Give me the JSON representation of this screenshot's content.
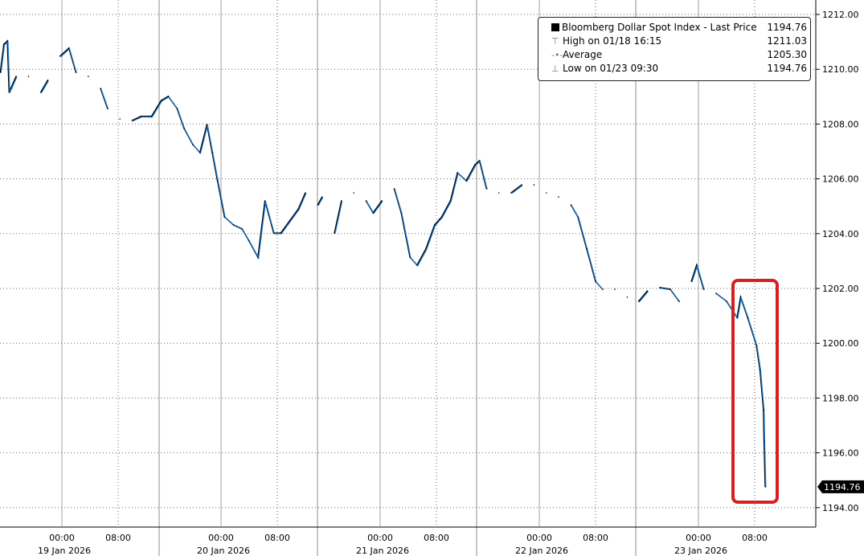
{
  "chart_data": {
    "type": "line",
    "title": "",
    "ylim": [
      1193.6,
      1212.4
    ],
    "y_ticks": [
      "1194.00",
      "1196.00",
      "1198.00",
      "1200.00",
      "1202.00",
      "1204.00",
      "1206.00",
      "1208.00",
      "1210.00",
      "1212.00"
    ],
    "x_tick_times": [
      "00:00",
      "08:00"
    ],
    "x_days": [
      "19 Jan 2026",
      "20 Jan 2026",
      "21 Jan 2026",
      "22 Jan 2026",
      "23 Jan 2026"
    ],
    "grid": true,
    "legend_position": "top-right",
    "last_price_label": "1194.76",
    "highlight_box_color": "#d61f1f",
    "line_colors": [
      "#000000",
      "#1f7fd6"
    ],
    "legend": {
      "series": "Bloomberg Dollar Spot Index - Last Price",
      "series_value": "1194.76",
      "high": "High on 01/18 16:15",
      "high_value": "1211.03",
      "average": "Average",
      "average_value": "1205.30",
      "low": "Low on 01/23 09:30",
      "low_value": "1194.76"
    },
    "series": [
      {
        "points": [
          [
            "01/18 15:15",
            1209.89
          ],
          [
            "01/18 15:45",
            1210.91
          ],
          [
            "01/18 16:15",
            1211.03
          ],
          [
            "01/18 16:30",
            1209.16
          ],
          [
            "01/18 17:30",
            1209.74
          ],
          [
            "01/18 19:15",
            1209.74
          ],
          [
            "01/18 21:00",
            1209.16
          ],
          [
            "01/18 22:00",
            1209.6
          ],
          [
            "01/18 23:45",
            1210.48
          ],
          [
            "01/19 01:00",
            1210.77
          ],
          [
            "01/19 02:00",
            1209.89
          ],
          [
            "01/19 03:45",
            1209.74
          ],
          [
            "01/19 05:30",
            1209.3
          ],
          [
            "01/19 06:30",
            1208.57
          ],
          [
            "01/19 08:15",
            1208.19
          ],
          [
            "01/19 10:00",
            1208.13
          ],
          [
            "01/19 11:15",
            1208.28
          ],
          [
            "01/19 12:45",
            1208.28
          ],
          [
            "01/19 15:30",
            1208.86
          ],
          [
            "01/19 16:30",
            1209.01
          ],
          [
            "01/19 17:45",
            1208.57
          ],
          [
            "01/19 18:45",
            1207.84
          ],
          [
            "01/19 20:00",
            1207.25
          ],
          [
            "01/19 21:00",
            1206.96
          ],
          [
            "01/19 22:00",
            1207.98
          ],
          [
            "01/19 22:45",
            1206.96
          ],
          [
            "01/19 23:30",
            1205.93
          ],
          [
            "01/20 00:30",
            1204.61
          ],
          [
            "01/20 01:45",
            1204.32
          ],
          [
            "01/20 03:00",
            1204.17
          ],
          [
            "01/20 04:00",
            1203.73
          ],
          [
            "01/20 05:15",
            1203.14
          ],
          [
            "01/20 06:15",
            1205.2
          ],
          [
            "01/20 07:30",
            1204.02
          ],
          [
            "01/20 08:30",
            1204.02
          ],
          [
            "01/20 09:45",
            1204.46
          ],
          [
            "01/20 11:00",
            1204.9
          ],
          [
            "01/20 12:00",
            1205.49
          ],
          [
            "01/20 13:45",
            1205.05
          ],
          [
            "01/20 15:45",
            1205.34
          ],
          [
            "01/20 17:30",
            1204.02
          ],
          [
            "01/20 18:30",
            1205.2
          ],
          [
            "01/20 20:15",
            1205.49
          ],
          [
            "01/20 22:00",
            1205.2
          ],
          [
            "01/20 23:00",
            1204.76
          ],
          [
            "01/21 00:15",
            1205.2
          ],
          [
            "01/21 02:00",
            1205.64
          ],
          [
            "01/21 03:00",
            1204.76
          ],
          [
            "01/21 04:15",
            1203.14
          ],
          [
            "01/21 05:15",
            1202.85
          ],
          [
            "01/21 06:30",
            1203.44
          ],
          [
            "01/21 07:45",
            1204.32
          ],
          [
            "01/21 08:45",
            1204.61
          ],
          [
            "01/21 10:00",
            1205.2
          ],
          [
            "01/21 11:00",
            1206.22
          ],
          [
            "01/21 12:15",
            1205.93
          ],
          [
            "01/21 13:30",
            1206.52
          ],
          [
            "01/21 15:30",
            1206.66
          ],
          [
            "01/21 16:30",
            1205.64
          ],
          [
            "01/21 18:15",
            1205.49
          ],
          [
            "01/21 20:00",
            1205.49
          ],
          [
            "01/21 21:30",
            1205.78
          ],
          [
            "01/21 23:15",
            1205.78
          ],
          [
            "01/22 01:00",
            1205.49
          ],
          [
            "01/22 02:45",
            1205.34
          ],
          [
            "01/22 04:30",
            1205.05
          ],
          [
            "01/22 05:30",
            1204.61
          ],
          [
            "01/22 06:45",
            1203.44
          ],
          [
            "01/22 08:00",
            1202.26
          ],
          [
            "01/22 09:00",
            1201.97
          ],
          [
            "01/22 10:45",
            1201.97
          ],
          [
            "01/22 12:30",
            1201.68
          ],
          [
            "01/22 15:30",
            1201.53
          ],
          [
            "01/22 16:45",
            1201.91
          ],
          [
            "01/22 18:30",
            1202.03
          ],
          [
            "01/22 20:00",
            1201.97
          ],
          [
            "01/22 21:15",
            1201.53
          ],
          [
            "01/22 23:00",
            1202.26
          ],
          [
            "01/22 23:45",
            1202.85
          ],
          [
            "01/23 00:45",
            1201.97
          ],
          [
            "01/23 02:30",
            1201.82
          ],
          [
            "01/23 04:00",
            1201.53
          ],
          [
            "01/23 05:30",
            1200.94
          ],
          [
            "01/23 06:00",
            1201.68
          ],
          [
            "01/23 07:00",
            1200.94
          ],
          [
            "01/23 08:15",
            1199.92
          ],
          [
            "01/23 08:45",
            1199.04
          ],
          [
            "01/23 09:15",
            1197.57
          ],
          [
            "01/23 09:20",
            1196.4
          ],
          [
            "01/23 09:30",
            1194.76
          ]
        ]
      }
    ]
  }
}
